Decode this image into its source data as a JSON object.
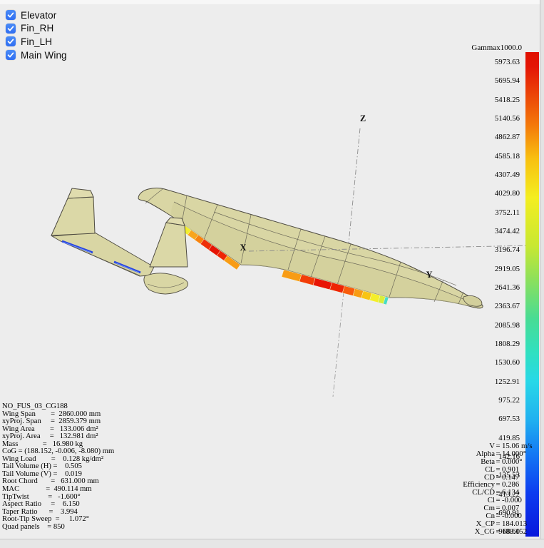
{
  "panel_toggles": {
    "items": [
      {
        "label": "Elevator",
        "checked": true
      },
      {
        "label": "Fin_RH",
        "checked": true
      },
      {
        "label": "Fin_LH",
        "checked": true
      },
      {
        "label": "Main Wing",
        "checked": true
      }
    ]
  },
  "colorbar": {
    "title": "Gammax1000.0",
    "ticks": [
      "5973.63",
      "5695.94",
      "5418.25",
      "5140.56",
      "4862.87",
      "4585.18",
      "4307.49",
      "4029.80",
      "3752.11",
      "3474.42",
      "3196.74",
      "2919.05",
      "2641.36",
      "2363.67",
      "2085.98",
      "1808.29",
      "1530.60",
      "1252.91",
      "975.22",
      "697.53",
      "419.85",
      "142.16",
      "-135.53",
      "-413.22",
      "-690.91",
      "-968.60"
    ],
    "gradient": [
      "#e01000 0%",
      "#e41505 3%",
      "#f4780a 15%",
      "#f8c010 22%",
      "#f4ee20 30%",
      "#c8e832 40%",
      "#8ce05c 47%",
      "#48dc94 55%",
      "#30e0c0 62%",
      "#28d8e8 68%",
      "#20b0f0 76%",
      "#1478f4 83%",
      "#0c3cf0 91%",
      "#0818dc 100%"
    ]
  },
  "axes": {
    "x": "X",
    "y": "Y",
    "z": "Z"
  },
  "model_info": {
    "lines": [
      "NO_FUS_03_CG188",
      "Wing Span        =  2860.000 mm",
      "xyProj. Span     =  2859.379 mm",
      "Wing Area        =   133.006 dm²",
      "xyProj. Area     =   132.981 dm²",
      "Mass             =   16.980 kg",
      "CoG = (188.152, -0.006, -8.080) mm",
      "Wing Load        =    0.128 kg/dm²",
      "Tail Volume (H) =    0.505",
      "Tail Volume (V) =    0.019",
      "Root Chord       =   631.000 mm",
      "MAC              =  490.114 mm",
      "TipTwist          =   -1.600°",
      "Aspect Ratio     =    6.150",
      "Taper Ratio      =    3.994",
      "Root-Tip Sweep  =     1.072°",
      "Quad panels    = 850"
    ]
  },
  "results": {
    "equals": "=",
    "rows": [
      {
        "label": "V",
        "value": "15.06 m/s"
      },
      {
        "label": "Alpha",
        "value": "14.000°"
      },
      {
        "label": "Beta",
        "value": "0.000°"
      },
      {
        "label": "CL",
        "value": "0.901"
      },
      {
        "label": "CD",
        "value": "0.147"
      },
      {
        "label": "Efficiency",
        "value": "0.286"
      },
      {
        "label": "CL/CD",
        "value": "6.134"
      },
      {
        "label": "Cl",
        "value": "-0.000"
      },
      {
        "label": "Cm",
        "value": "0.007"
      },
      {
        "label": "Cn",
        "value": "-0.000"
      },
      {
        "label": "X_CP",
        "value": "184.013"
      },
      {
        "label": "X_CG",
        "value": "188.152"
      }
    ]
  },
  "heat_strips": {
    "left_wing_sequence": [
      "green",
      "yellow",
      "orange",
      "orange",
      "red",
      "red",
      "red",
      "orange"
    ],
    "right_wing_sequence": [
      "orange",
      "red-orange",
      "red",
      "red",
      "orange-red",
      "orange",
      "amber",
      "yellow",
      "yellow-green",
      "cyan"
    ],
    "elevator_sequence": [
      "blue",
      "blue"
    ]
  },
  "colors": {
    "checkbox_accent": "#3478f6",
    "viewport_background": "#ededed",
    "surface_tan": "#d9d6a4",
    "outline": "#4d4a40",
    "axis_gray": "#8a8a8a",
    "elevator_strip_blue": "#2846e0"
  }
}
